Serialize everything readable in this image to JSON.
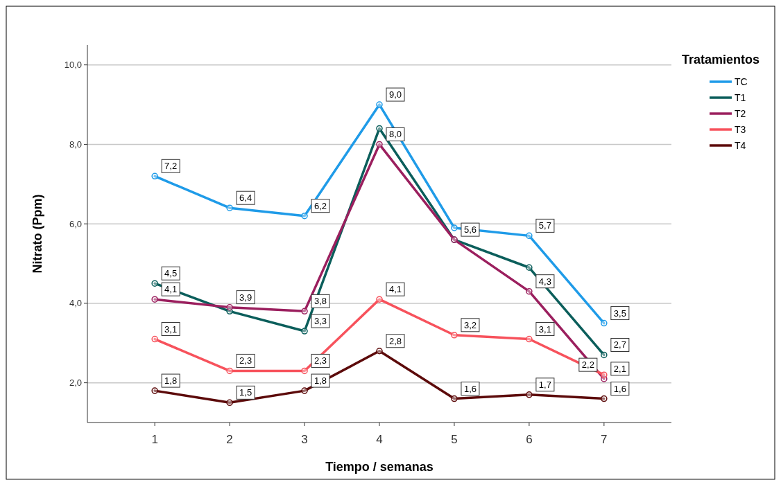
{
  "chart_data": {
    "type": "line",
    "xlabel": "Tiempo / semanas",
    "ylabel": "Nitrato (Ppm)",
    "legend_title": "Tratamientos",
    "categories": [
      "1",
      "2",
      "3",
      "4",
      "5",
      "6",
      "7"
    ],
    "ylim": [
      1.0,
      10.5
    ],
    "yticks": [
      {
        "value": 2,
        "label": "2,0"
      },
      {
        "value": 4,
        "label": "4,0"
      },
      {
        "value": 6,
        "label": "6,0"
      },
      {
        "value": 8,
        "label": "8,0"
      },
      {
        "value": 10,
        "label": "10,0"
      }
    ],
    "grid": "y",
    "legend": "top right",
    "marker": "circle",
    "line_style": "solid",
    "series": [
      {
        "name": "TC",
        "color": "#1f9be8",
        "values": [
          7.2,
          6.4,
          6.2,
          9.0,
          5.9,
          5.7,
          3.5
        ],
        "value_labels": [
          "7,2",
          "6,4",
          "6,2",
          "9,0",
          null,
          "5,7",
          "3,5"
        ]
      },
      {
        "name": "T1",
        "color": "#0b5e5b",
        "values": [
          4.5,
          3.8,
          3.3,
          8.4,
          5.6,
          4.9,
          2.7
        ],
        "value_labels": [
          "4,5",
          null,
          "3,3",
          null,
          "5,6",
          null,
          "2,7"
        ]
      },
      {
        "name": "T2",
        "color": "#9b1f5e",
        "values": [
          4.1,
          3.9,
          3.8,
          8.0,
          5.6,
          4.3,
          2.1
        ],
        "value_labels": [
          "4,1",
          "3,9",
          "3,8",
          "8,0",
          null,
          "4,3",
          "2,1"
        ]
      },
      {
        "name": "T3",
        "color": "#f7525c",
        "values": [
          3.1,
          2.3,
          2.3,
          4.1,
          3.2,
          3.1,
          2.2
        ],
        "value_labels": [
          "3,1",
          "2,3",
          "2,3",
          "4,1",
          "3,2",
          "3,1",
          "2,2"
        ]
      },
      {
        "name": "T4",
        "color": "#5c0a0a",
        "values": [
          1.8,
          1.5,
          1.8,
          2.8,
          1.6,
          1.7,
          1.6
        ],
        "value_labels": [
          "1,8",
          "1,5",
          "1,8",
          "2,8",
          "1,6",
          "1,7",
          "1,6"
        ]
      }
    ]
  }
}
